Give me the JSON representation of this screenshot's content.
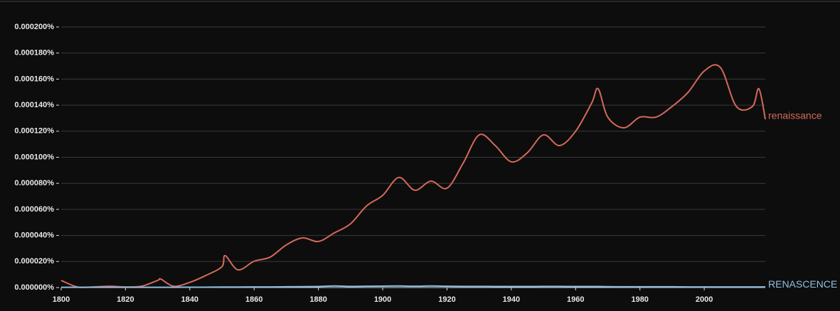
{
  "chart_data": {
    "type": "line",
    "x": [
      1800,
      1805,
      1810,
      1815,
      1820,
      1825,
      1830,
      1831,
      1835,
      1840,
      1845,
      1850,
      1851,
      1855,
      1860,
      1865,
      1870,
      1875,
      1880,
      1885,
      1890,
      1895,
      1900,
      1905,
      1910,
      1915,
      1920,
      1925,
      1930,
      1935,
      1940,
      1945,
      1950,
      1955,
      1960,
      1965,
      1967,
      1970,
      1975,
      1980,
      1985,
      1990,
      1995,
      2000,
      2005,
      2010,
      2015,
      2017,
      2019
    ],
    "series": [
      {
        "name": "renaissance",
        "color": "#d3695a",
        "values": [
          5.5e-06,
          5e-07,
          5e-07,
          1e-06,
          5e-07,
          1e-06,
          5.5e-06,
          6.5e-06,
          1e-06,
          4e-06,
          9.3e-06,
          1.6e-05,
          2.45e-05,
          1.36e-05,
          2.02e-05,
          2.34e-05,
          3.27e-05,
          3.81e-05,
          3.54e-05,
          4.2e-05,
          4.9e-05,
          6.27e-05,
          7.08e-05,
          8.45e-05,
          7.47e-05,
          8.17e-05,
          7.63e-05,
          9.54e-05,
          0.0001172,
          0.000109,
          9.65e-05,
          0.0001035,
          0.0001172,
          0.000109,
          0.00012,
          0.0001417,
          0.0001526,
          0.0001308,
          0.0001226,
          0.0001308,
          0.0001308,
          0.000139,
          0.0001499,
          0.0001662,
          0.000169,
          0.000139,
          0.000139,
          0.0001526,
          0.0001292
        ]
      },
      {
        "name": "RENASCENCE",
        "color": "#8fbfe0",
        "values": [
          2e-07,
          2e-07,
          2e-07,
          2e-07,
          2e-07,
          2e-07,
          2e-07,
          2e-07,
          2e-07,
          3e-07,
          3e-07,
          4e-07,
          4e-07,
          4e-07,
          5e-07,
          5e-07,
          6e-07,
          7e-07,
          8e-07,
          1.2e-06,
          9e-07,
          1e-06,
          1.1e-06,
          1.2e-06,
          1e-06,
          1.2e-06,
          1e-06,
          9e-07,
          9e-07,
          8e-07,
          8e-07,
          8e-07,
          9e-07,
          9e-07,
          8e-07,
          8e-07,
          8e-07,
          7e-07,
          6e-07,
          6e-07,
          6e-07,
          6e-07,
          5e-07,
          5e-07,
          5e-07,
          5e-07,
          5e-07,
          5e-07,
          5e-07
        ]
      }
    ],
    "xlim": [
      1800,
      2019
    ],
    "xticks": [
      1800,
      1820,
      1840,
      1860,
      1880,
      1900,
      1920,
      1940,
      1960,
      1980,
      2000
    ],
    "ylim": [
      0,
      0.0002
    ],
    "yticks": [
      {
        "value": 0,
        "label": "0.000000%"
      },
      {
        "value": 2e-05,
        "label": "0.000020%"
      },
      {
        "value": 4e-05,
        "label": "0.000040%"
      },
      {
        "value": 6e-05,
        "label": "0.000060%"
      },
      {
        "value": 8e-05,
        "label": "0.000080%"
      },
      {
        "value": 0.0001,
        "label": "0.000100%"
      },
      {
        "value": 0.00012,
        "label": "0.000120%"
      },
      {
        "value": 0.00014,
        "label": "0.000140%"
      },
      {
        "value": 0.00016,
        "label": "0.000160%"
      },
      {
        "value": 0.00018,
        "label": "0.000180%"
      },
      {
        "value": 0.0002,
        "label": "0.000200%"
      }
    ],
    "grid": true
  }
}
